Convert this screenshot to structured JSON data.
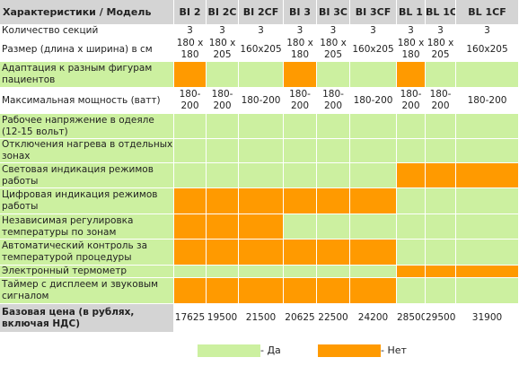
{
  "colors": {
    "yes": "#ccf0a0",
    "no": "#ff9a00",
    "header": "#d4d4d4"
  },
  "header": {
    "feature_title": "Характеристики  / Модель",
    "models": [
      "BI 2",
      "BI 2C",
      "BI 2CF",
      "BI 3",
      "BI 3C",
      "BI 3CF",
      "BL 1",
      "BL 1C",
      "BL 1CF"
    ]
  },
  "rows": [
    {
      "label": "Количество секций",
      "height": 14,
      "cells": [
        {
          "text": "3",
          "state": "plain"
        },
        {
          "text": "3",
          "state": "plain"
        },
        {
          "text": "3",
          "state": "plain"
        },
        {
          "text": "3",
          "state": "plain"
        },
        {
          "text": "3",
          "state": "plain"
        },
        {
          "text": "3",
          "state": "plain"
        },
        {
          "text": "3",
          "state": "plain"
        },
        {
          "text": "3",
          "state": "plain"
        },
        {
          "text": "3",
          "state": "plain"
        }
      ]
    },
    {
      "label": "Размер (длина х ширина) в см",
      "height": 27,
      "cells": [
        {
          "text": "180 х 180",
          "state": "plain"
        },
        {
          "text": "180 х 205",
          "state": "plain"
        },
        {
          "text": "160x205",
          "state": "plain"
        },
        {
          "text": "180 х 180",
          "state": "plain"
        },
        {
          "text": "180 х 205",
          "state": "plain"
        },
        {
          "text": "160x205",
          "state": "plain"
        },
        {
          "text": "180 х 180",
          "state": "plain"
        },
        {
          "text": "180 х 205",
          "state": "plain"
        },
        {
          "text": "160x205",
          "state": "plain"
        }
      ]
    },
    {
      "label": "Адаптация к разным фигурам пациентов",
      "height": 29,
      "cells": [
        {
          "text": "",
          "state": "no"
        },
        {
          "text": "",
          "state": "yes"
        },
        {
          "text": "",
          "state": "yes"
        },
        {
          "text": "",
          "state": "no"
        },
        {
          "text": "",
          "state": "yes"
        },
        {
          "text": "",
          "state": "yes"
        },
        {
          "text": "",
          "state": "no"
        },
        {
          "text": "",
          "state": "yes"
        },
        {
          "text": "",
          "state": "yes"
        }
      ]
    },
    {
      "label": "Максимальная мощность  (ватт)",
      "height": 29,
      "cells": [
        {
          "text": "180-200",
          "state": "plain"
        },
        {
          "text": "180-200",
          "state": "plain"
        },
        {
          "text": "180-200",
          "state": "plain"
        },
        {
          "text": "180-200",
          "state": "plain"
        },
        {
          "text": "180-200",
          "state": "plain"
        },
        {
          "text": "180-200",
          "state": "plain"
        },
        {
          "text": "180-200",
          "state": "plain"
        },
        {
          "text": "180-200",
          "state": "plain"
        },
        {
          "text": "180-200",
          "state": "plain"
        }
      ]
    },
    {
      "label": "Рабочее напряжение в одеяле (12-15 вольт)",
      "height": 28,
      "cells": [
        {
          "text": "",
          "state": "yes"
        },
        {
          "text": "",
          "state": "yes"
        },
        {
          "text": "",
          "state": "yes"
        },
        {
          "text": "",
          "state": "yes"
        },
        {
          "text": "",
          "state": "yes"
        },
        {
          "text": "",
          "state": "yes"
        },
        {
          "text": "",
          "state": "yes"
        },
        {
          "text": "",
          "state": "yes"
        },
        {
          "text": "",
          "state": "yes"
        }
      ]
    },
    {
      "label": "Отключения нагрева в отдельных зонах",
      "height": 27,
      "cells": [
        {
          "text": "",
          "state": "yes"
        },
        {
          "text": "",
          "state": "yes"
        },
        {
          "text": "",
          "state": "yes"
        },
        {
          "text": "",
          "state": "yes"
        },
        {
          "text": "",
          "state": "yes"
        },
        {
          "text": "",
          "state": "yes"
        },
        {
          "text": "",
          "state": "yes"
        },
        {
          "text": "",
          "state": "yes"
        },
        {
          "text": "",
          "state": "yes"
        }
      ]
    },
    {
      "label": "Световая индикация режимов работы",
      "height": 28,
      "cells": [
        {
          "text": "",
          "state": "yes"
        },
        {
          "text": "",
          "state": "yes"
        },
        {
          "text": "",
          "state": "yes"
        },
        {
          "text": "",
          "state": "yes"
        },
        {
          "text": "",
          "state": "yes"
        },
        {
          "text": "",
          "state": "yes"
        },
        {
          "text": "",
          "state": "no"
        },
        {
          "text": "",
          "state": "no"
        },
        {
          "text": "",
          "state": "no"
        }
      ]
    },
    {
      "label": "Цифровая индикация режимов работы",
      "height": 29,
      "cells": [
        {
          "text": "",
          "state": "no"
        },
        {
          "text": "",
          "state": "no"
        },
        {
          "text": "",
          "state": "no"
        },
        {
          "text": "",
          "state": "no"
        },
        {
          "text": "",
          "state": "no"
        },
        {
          "text": "",
          "state": "no"
        },
        {
          "text": "",
          "state": "yes"
        },
        {
          "text": "",
          "state": "yes"
        },
        {
          "text": "",
          "state": "yes"
        }
      ]
    },
    {
      "label": "Независимая регулировка температуры по зонам",
      "height": 28,
      "cells": [
        {
          "text": "",
          "state": "no"
        },
        {
          "text": "",
          "state": "no"
        },
        {
          "text": "",
          "state": "no"
        },
        {
          "text": "",
          "state": "yes"
        },
        {
          "text": "",
          "state": "yes"
        },
        {
          "text": "",
          "state": "yes"
        },
        {
          "text": "",
          "state": "yes"
        },
        {
          "text": "",
          "state": "yes"
        },
        {
          "text": "",
          "state": "yes"
        }
      ]
    },
    {
      "label": "Автоматический контроль за температурой процедуры",
      "height": 29,
      "cells": [
        {
          "text": "",
          "state": "no"
        },
        {
          "text": "",
          "state": "no"
        },
        {
          "text": "",
          "state": "no"
        },
        {
          "text": "",
          "state": "no"
        },
        {
          "text": "",
          "state": "no"
        },
        {
          "text": "",
          "state": "no"
        },
        {
          "text": "",
          "state": "yes"
        },
        {
          "text": "",
          "state": "yes"
        },
        {
          "text": "",
          "state": "yes"
        }
      ]
    },
    {
      "label": "Электронный термометр",
      "height": 14,
      "cells": [
        {
          "text": "",
          "state": "yes"
        },
        {
          "text": "",
          "state": "yes"
        },
        {
          "text": "",
          "state": "yes"
        },
        {
          "text": "",
          "state": "yes"
        },
        {
          "text": "",
          "state": "yes"
        },
        {
          "text": "",
          "state": "yes"
        },
        {
          "text": "",
          "state": "no"
        },
        {
          "text": "",
          "state": "no"
        },
        {
          "text": "",
          "state": "no"
        }
      ]
    },
    {
      "label": "Таймер с дисплеем и звуковым сигналом",
      "height": 29,
      "cells": [
        {
          "text": "",
          "state": "no"
        },
        {
          "text": "",
          "state": "no"
        },
        {
          "text": "",
          "state": "no"
        },
        {
          "text": "",
          "state": "no"
        },
        {
          "text": "",
          "state": "no"
        },
        {
          "text": "",
          "state": "no"
        },
        {
          "text": "",
          "state": "yes"
        },
        {
          "text": "",
          "state": "yes"
        },
        {
          "text": "",
          "state": "yes"
        }
      ]
    }
  ],
  "price": {
    "label": "Базовая цена  (в рублях, включая НДС)",
    "values": [
      "17625",
      "19500",
      "21500",
      "20625",
      "22500",
      "24200",
      "28500",
      "29500",
      "31900"
    ]
  },
  "legend": {
    "yes_text": "- Да",
    "no_text": "- Нет"
  }
}
